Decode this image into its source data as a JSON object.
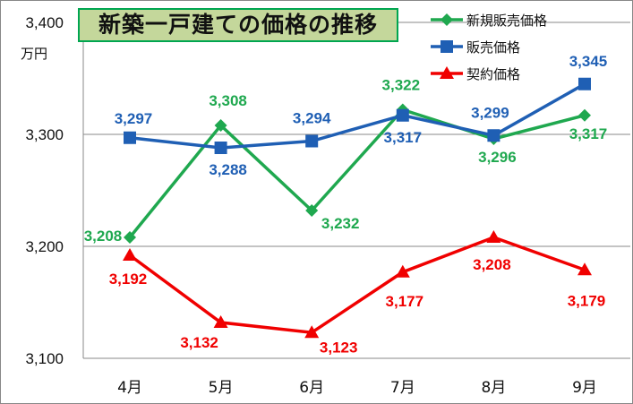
{
  "chart_data": {
    "type": "line",
    "title": "新築一戸建ての価格の推移",
    "ylabel": "万円",
    "xlabel": "",
    "categories": [
      "4月",
      "5月",
      "6月",
      "7月",
      "8月",
      "9月"
    ],
    "ylim": [
      3100,
      3400
    ],
    "yticks": [
      3100,
      3200,
      3300,
      3400
    ],
    "ytick_labels": [
      "3,100",
      "3,200",
      "3,300",
      "3,400"
    ],
    "grid": true,
    "legend_position": "top-right",
    "series": [
      {
        "name": "新規販売価格",
        "color": "#1fa84f",
        "marker": "diamond",
        "values": [
          3208,
          3308,
          3232,
          3322,
          3296,
          3317
        ],
        "labels": [
          "3,208",
          "3,308",
          "3,232",
          "3,322",
          "3,296",
          "3,317"
        ]
      },
      {
        "name": "販売価格",
        "color": "#1f5fb4",
        "marker": "square",
        "values": [
          3297,
          3288,
          3294,
          3317,
          3299,
          3345
        ],
        "labels": [
          "3,297",
          "3,288",
          "3,294",
          "3,317",
          "3,299",
          "3,345"
        ]
      },
      {
        "name": "契約価格",
        "color": "#f00000",
        "marker": "triangle",
        "values": [
          3192,
          3132,
          3123,
          3177,
          3208,
          3179
        ],
        "labels": [
          "3,192",
          "3,132",
          "3,123",
          "3,177",
          "3,208",
          "3,179"
        ]
      }
    ]
  }
}
